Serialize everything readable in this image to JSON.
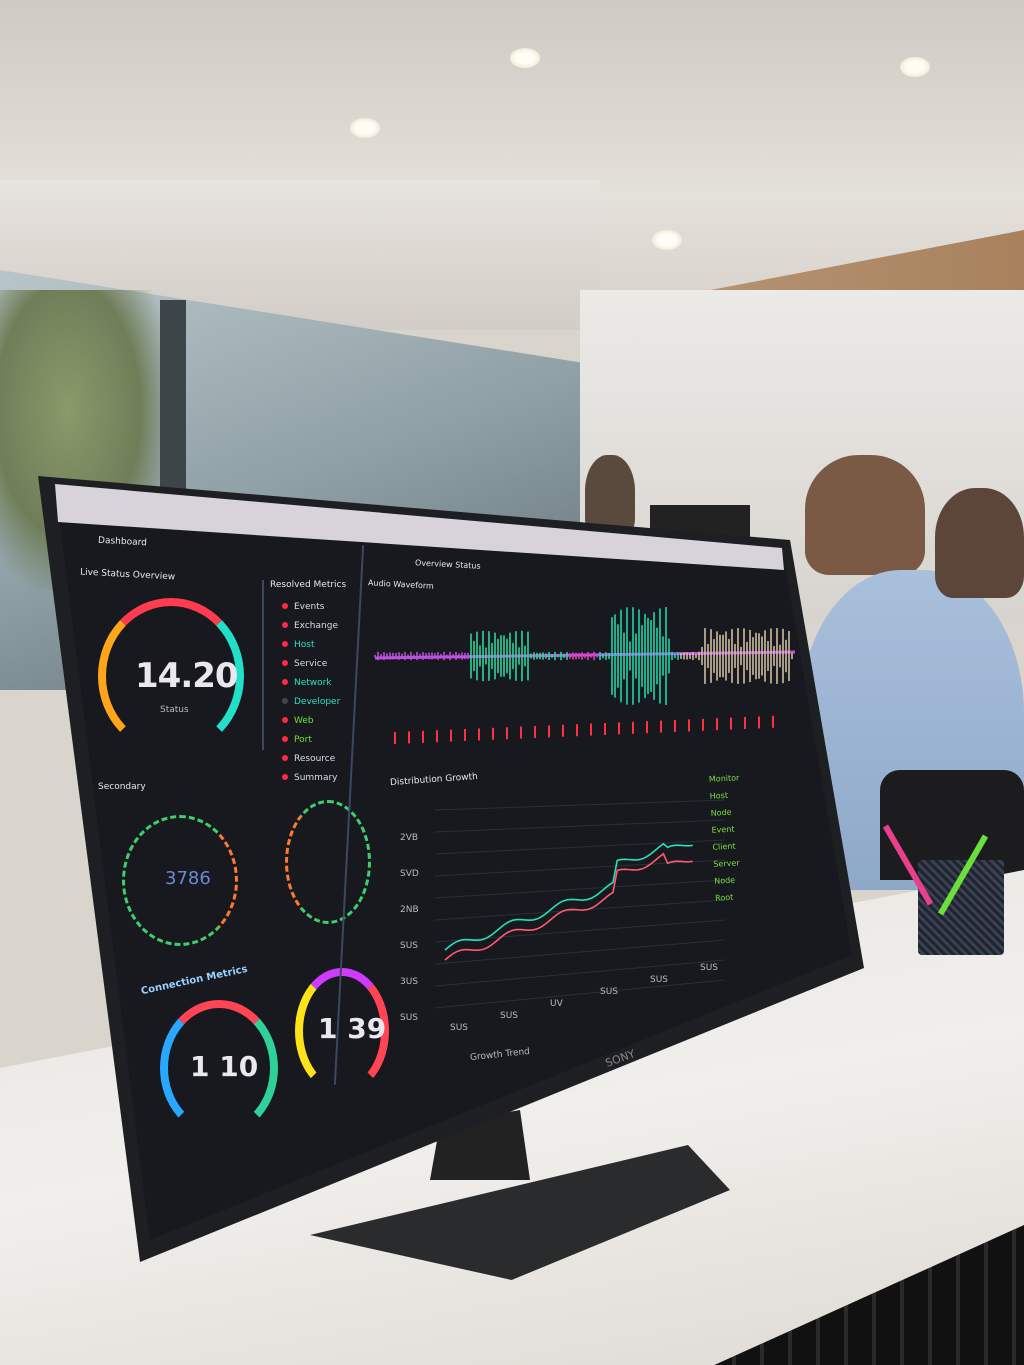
{
  "scene": {
    "description_type": "office photo with monitor dashboard"
  },
  "dashboard": {
    "tab_title": "Dashboard",
    "left_panel_title": "Live Status Overview",
    "main_gauge": {
      "value": "14.20",
      "label": "Status"
    },
    "legend_title": "Resolved Metrics",
    "legend_items": [
      "Events",
      "Exchange",
      "Host",
      "Service",
      "Network",
      "Developer",
      "Web",
      "Port",
      "Resource",
      "Summary"
    ],
    "section_title": "Secondary",
    "circular_value": "3786",
    "lower_title": "Connection Metrics",
    "gauge_a": {
      "value": "1 10"
    },
    "gauge_b": {
      "value": "1 39"
    },
    "waveform_title": "Audio Waveform",
    "header_title": "Overview Status",
    "line_chart": {
      "title": "Distribution Growth",
      "y_ticks": [
        "2VB",
        "SVD",
        "2NB",
        "SUS",
        "3US",
        "SUS"
      ],
      "x_ticks": [
        "SUS",
        "SUS",
        "UV",
        "SUS",
        "SUS",
        "SUS"
      ],
      "xlabel": "Growth Trend",
      "series_colors": [
        "#28e0b8",
        "#ff5a6e"
      ]
    },
    "right_list": [
      "Monitor",
      "Host",
      "Node",
      "Event",
      "Client",
      "Server",
      "Node",
      "Root"
    ]
  },
  "monitor_brand": "SONY"
}
